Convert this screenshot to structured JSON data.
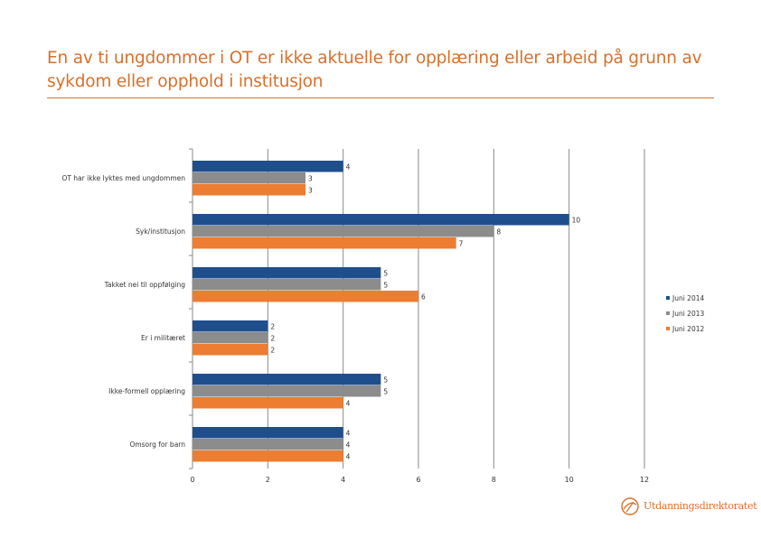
{
  "page": {
    "title": "En av ti ungdommer i OT er ikke aktuelle for opplæring eller arbeid på grunn av sykdom eller opphold i institusjon"
  },
  "logo": {
    "text": "Utdanningsdirektoratet"
  },
  "colors": {
    "accent": "#d8702a",
    "series_2014": "#1f4e8c",
    "series_2013": "#8c8c8c",
    "series_2012": "#ed7d31"
  },
  "chart_data": {
    "type": "bar",
    "orientation": "horizontal",
    "categories": [
      "OT har ikke lyktes med ungdommen",
      "Syk/institusjon",
      "Takket nei til oppfølging",
      "Er i militæret",
      "Ikke-formell opplæring",
      "Omsorg for barn"
    ],
    "series": [
      {
        "name": "Juni 2014",
        "color": "#1f4e8c",
        "values": [
          4,
          10,
          5,
          2,
          5,
          4
        ]
      },
      {
        "name": "Juni 2013",
        "color": "#8c8c8c",
        "values": [
          3,
          8,
          5,
          2,
          5,
          4
        ]
      },
      {
        "name": "Juni 2012",
        "color": "#ed7d31",
        "values": [
          3,
          7,
          6,
          2,
          4,
          4
        ]
      }
    ],
    "xlim": [
      0,
      12
    ],
    "xticks": [
      "0",
      "2",
      "4",
      "6",
      "8",
      "10",
      "12"
    ],
    "grid": true,
    "legend": "right"
  }
}
